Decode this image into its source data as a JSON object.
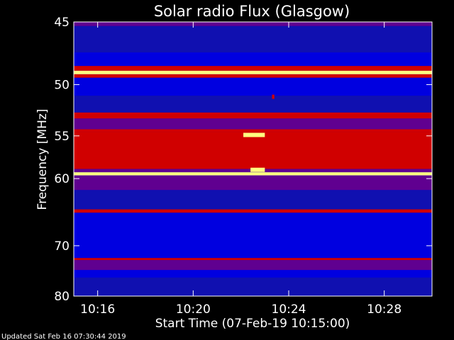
{
  "chart_data": {
    "type": "heatmap",
    "title": "Solar radio Flux (Glasgow)",
    "ylabel": "Frequency [MHz]",
    "xlabel": "Start Time (07-Feb-19 10:15:00)",
    "footer": "Updated Sat Feb 16 07:30:44 2019",
    "y_ticks": [
      45,
      50,
      55,
      60,
      70,
      80
    ],
    "x_ticks": [
      {
        "label": "10:16",
        "minutes": 1
      },
      {
        "label": "10:20",
        "minutes": 5
      },
      {
        "label": "10:24",
        "minutes": 9
      },
      {
        "label": "10:28",
        "minutes": 13
      }
    ],
    "ylim": [
      45,
      80
    ],
    "xlim_minutes": [
      0,
      15
    ],
    "colors": {
      "background": "#0000e0",
      "low": "#1010b0",
      "mid": "#600090",
      "high": "#d00000",
      "peak": "#ffff80",
      "axis": "#ffffff"
    },
    "bands": [
      {
        "f_from": 45.0,
        "f_to": 45.3,
        "level": "mid"
      },
      {
        "f_from": 45.3,
        "f_to": 47.3,
        "level": "low"
      },
      {
        "f_from": 47.3,
        "f_to": 48.4,
        "level": "background"
      },
      {
        "f_from": 48.4,
        "f_to": 48.8,
        "level": "high"
      },
      {
        "f_from": 48.8,
        "f_to": 49.1,
        "level": "peak"
      },
      {
        "f_from": 49.1,
        "f_to": 49.4,
        "level": "high"
      },
      {
        "f_from": 49.4,
        "f_to": 51.0,
        "level": "background"
      },
      {
        "f_from": 51.0,
        "f_to": 52.6,
        "level": "low"
      },
      {
        "f_from": 52.6,
        "f_to": 53.2,
        "level": "high"
      },
      {
        "f_from": 53.2,
        "f_to": 54.3,
        "level": "mid"
      },
      {
        "f_from": 54.3,
        "f_to": 54.6,
        "level": "high"
      },
      {
        "f_from": 54.6,
        "f_to": 58.8,
        "level": "high"
      },
      {
        "f_from": 58.8,
        "f_to": 59.2,
        "level": "mid"
      },
      {
        "f_from": 59.2,
        "f_to": 59.6,
        "level": "peak"
      },
      {
        "f_from": 59.6,
        "f_to": 61.5,
        "level": "mid"
      },
      {
        "f_from": 61.5,
        "f_to": 64.2,
        "level": "low"
      },
      {
        "f_from": 64.2,
        "f_to": 64.7,
        "level": "high"
      },
      {
        "f_from": 64.7,
        "f_to": 72.2,
        "level": "background"
      },
      {
        "f_from": 72.2,
        "f_to": 72.6,
        "level": "high"
      },
      {
        "f_from": 72.6,
        "f_to": 74.5,
        "level": "mid"
      },
      {
        "f_from": 74.5,
        "f_to": 76.0,
        "level": "background"
      },
      {
        "f_from": 76.0,
        "f_to": 80.0,
        "level": "low"
      }
    ],
    "bursts": [
      {
        "t_from": 7.1,
        "t_to": 8.0,
        "f": 54.9,
        "level": "peak"
      },
      {
        "t_from": 7.4,
        "t_to": 8.0,
        "f": 58.9,
        "level": "peak"
      },
      {
        "t_from": 8.3,
        "t_to": 8.4,
        "f": 51.1,
        "level": "high"
      }
    ]
  }
}
